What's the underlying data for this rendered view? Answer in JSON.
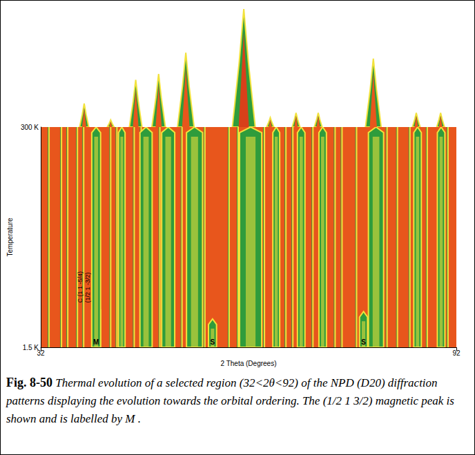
{
  "caption": {
    "label": "Fig. 8-50",
    "text": "Thermal evolution of a selected region (32<2θ<92) of the NPD (D20) diffraction patterns displaying the evolution towards the orbital ordering. The (1/2 1 3/2) magnetic peak is shown and is labelled by M ."
  },
  "chart_data": {
    "type": "surface",
    "xlabel": "2 Theta (Degrees)",
    "ylabel": "Temperature",
    "xlim": [
      32,
      92
    ],
    "xticks": [
      32,
      92
    ],
    "ylim": [
      1.5,
      300
    ],
    "yticks": [
      {
        "value": 1.5,
        "label": "1.5 K"
      },
      {
        "value": 300,
        "label": "300 K"
      }
    ],
    "grid": false,
    "intensity_lim": [
      0,
      100
    ],
    "peaks": [
      {
        "x": 40.0,
        "intensity": 20,
        "t_max": 60,
        "label": "M",
        "annotation": [
          "C (1 1 -5/4)",
          "(1/2 1 -3/2)"
        ]
      },
      {
        "x": 40.0,
        "intensity": 20,
        "t_max": 300
      },
      {
        "x": 43.7,
        "intensity": 6,
        "t_max": 300
      },
      {
        "x": 47.2,
        "intensity": 40,
        "t_max": 300
      },
      {
        "x": 50.4,
        "intensity": 45,
        "t_max": 300
      },
      {
        "x": 54.2,
        "intensity": 63,
        "t_max": 300
      },
      {
        "x": 56.8,
        "intensity": 15,
        "t_max": 40,
        "label": "S"
      },
      {
        "x": 62.3,
        "intensity": 100,
        "t_max": 300
      },
      {
        "x": 66.0,
        "intensity": 8,
        "t_max": 300
      },
      {
        "x": 69.6,
        "intensity": 12,
        "t_max": 300
      },
      {
        "x": 72.7,
        "intensity": 12,
        "t_max": 300
      },
      {
        "x": 78.6,
        "intensity": 15,
        "t_max": 50,
        "label": "S"
      },
      {
        "x": 80.4,
        "intensity": 58,
        "t_max": 300
      },
      {
        "x": 86.4,
        "intensity": 12,
        "t_max": 300
      },
      {
        "x": 89.8,
        "intensity": 12,
        "t_max": 300
      }
    ],
    "weak_peaks": [
      33.2,
      35.0,
      35.9,
      37.3,
      38.2,
      42.1,
      43.0,
      45.5,
      46.5,
      49.2,
      52.4,
      55.7,
      59.2,
      60.5,
      64.3,
      67.4,
      68.4,
      71.3,
      74.5,
      75.5,
      77.6,
      82.0,
      83.5,
      85.3,
      87.8,
      90.8
    ]
  }
}
